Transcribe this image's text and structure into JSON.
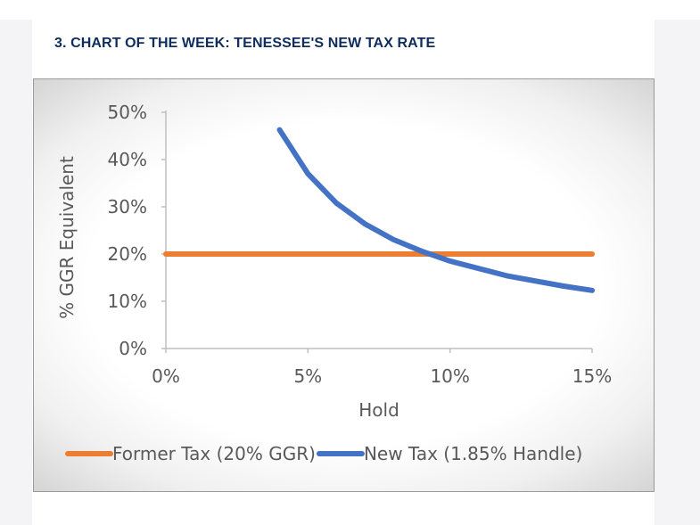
{
  "header": {
    "title": "3. CHART OF THE WEEK: TENESSEE'S NEW TAX RATE"
  },
  "chart_data": {
    "type": "line",
    "xlabel": "Hold",
    "ylabel": "% GGR Equivalent",
    "xlim": [
      0,
      15
    ],
    "ylim": [
      0,
      50
    ],
    "x_ticks": [
      "0%",
      "5%",
      "10%",
      "15%"
    ],
    "y_ticks": [
      "0%",
      "10%",
      "20%",
      "30%",
      "40%",
      "50%"
    ],
    "grid": false,
    "legend_position": "bottom",
    "series": [
      {
        "name": "Former Tax (20% GGR)",
        "color": "#ed7d31",
        "x": [
          0,
          15
        ],
        "y": [
          20,
          20
        ]
      },
      {
        "name": "New Tax (1.85% Handle)",
        "color": "#4472c4",
        "x": [
          4,
          5,
          6,
          7,
          8,
          9,
          10,
          12,
          14,
          15
        ],
        "y": [
          46.3,
          37.0,
          30.8,
          26.4,
          23.1,
          20.6,
          18.5,
          15.4,
          13.2,
          12.3
        ]
      }
    ]
  }
}
